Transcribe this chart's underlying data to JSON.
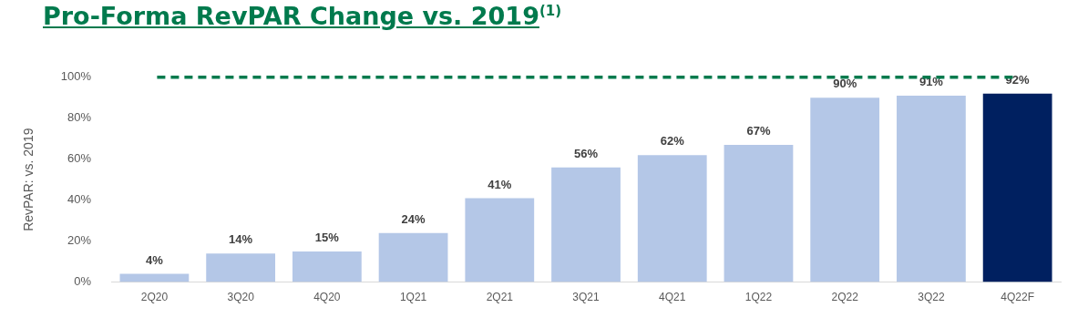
{
  "chart_data": {
    "type": "bar",
    "title": "Pro-Forma RevPAR Change vs. 2019$^{(1)}$",
    "ylabel": "RevPAR: vs. 2019",
    "categories": [
      "2Q20",
      "3Q20",
      "4Q20",
      "1Q21",
      "2Q21",
      "3Q21",
      "4Q21",
      "1Q22",
      "2Q22",
      "3Q22",
      "4Q22F"
    ],
    "values": [
      4,
      14,
      15,
      24,
      41,
      56,
      62,
      67,
      90,
      91,
      92
    ],
    "colors": [
      "#b4c7e7",
      "#b4c7e7",
      "#b4c7e7",
      "#b4c7e7",
      "#b4c7e7",
      "#b4c7e7",
      "#b4c7e7",
      "#b4c7e7",
      "#b4c7e7",
      "#b4c7e7",
      "#002060"
    ],
    "value_labels": [
      "4%",
      "14%",
      "15%",
      "24%",
      "41%",
      "56%",
      "62%",
      "67%",
      "90%",
      "91%",
      "92%"
    ],
    "ylim": [
      0,
      100
    ],
    "yticks": [
      {
        "value": 0,
        "label": "0%"
      },
      {
        "value": 20,
        "label": "20%"
      },
      {
        "value": 40,
        "label": "40%"
      },
      {
        "value": 60,
        "label": "60%"
      },
      {
        "value": 80,
        "label": "80%"
      },
      {
        "value": 100,
        "label": "100%"
      }
    ],
    "ref_lines": [
      {
        "axis": "y",
        "value": 100,
        "label": null,
        "color": "#007a4d",
        "line_style": "dashed"
      }
    ],
    "grid": false,
    "legend": false
  }
}
